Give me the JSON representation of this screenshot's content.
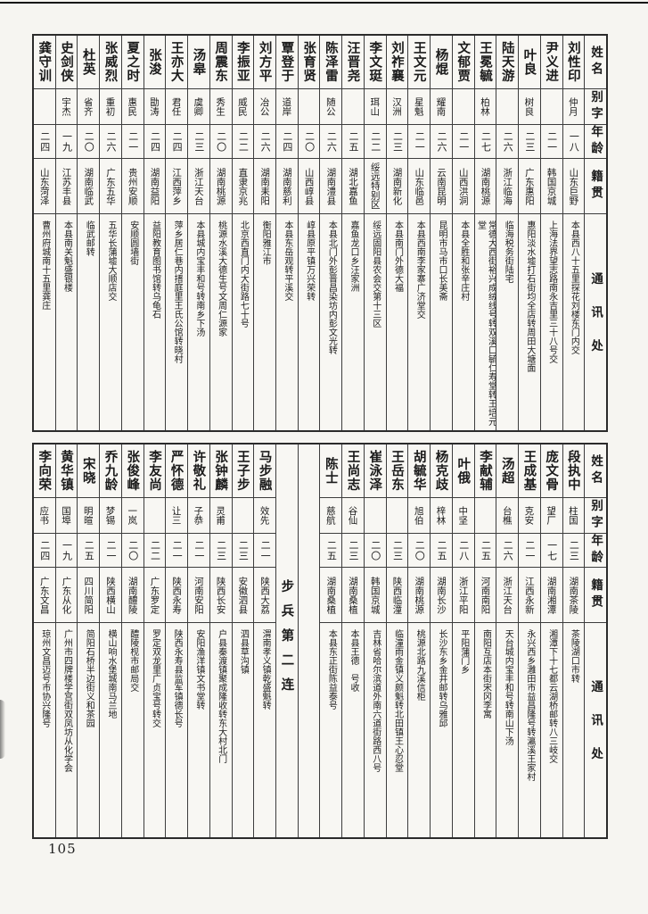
{
  "page": {
    "number": "105"
  },
  "colors": {
    "paper": "#f6f5f1",
    "ink": "#1b1b1b",
    "rule": "#3d3d3d"
  },
  "headers": {
    "name": "姓名",
    "zi": "别字",
    "age": "年龄",
    "origin": "籍贯",
    "address": "通讯处"
  },
  "top_table": {
    "persons": [
      {
        "name": "刘性印",
        "zi": "仲月",
        "age": "一八",
        "origin": "山东巨野",
        "address": "本县西八十五里探花刘楼东门内交"
      },
      {
        "name": "尹义进",
        "zi": "",
        "age": "二一",
        "origin": "韩国京城",
        "address": "上海法界望志路南永吉里三十八号交"
      },
      {
        "name": "叶良",
        "zi": "树良",
        "age": "二三",
        "origin": "广东惠阳",
        "address": "惠阳淡水墟打石街均全店转周田大塘面"
      },
      {
        "name": "陆天游",
        "zi": "",
        "age": "二六",
        "origin": "浙江临海",
        "address": "临海税务街陆宅"
      },
      {
        "name": "王冕毓",
        "zi": "柏林",
        "age": "二七",
        "origin": "湖南桃源",
        "address": "常德大西街裕兴成绒线号转双溪口毓仁寿堂转王培元堂"
      },
      {
        "name": "文郁贾",
        "zi": "",
        "age": "二一",
        "origin": "山西洪洞",
        "address": "本县全胜和张辛庄村"
      },
      {
        "name": "杨焜",
        "zi": "耀南",
        "age": "二六",
        "origin": "云南昆明",
        "address": "昆明市马市口长美斋"
      },
      {
        "name": "王文元",
        "zi": "星魁",
        "age": "二一",
        "origin": "山东临邑",
        "address": "本县西南李家寨广济堂交"
      },
      {
        "name": "刘祚襄",
        "zi": "汉洲",
        "age": "二三",
        "origin": "湖南新化",
        "address": "本县南门外德大福"
      },
      {
        "name": "李文珽",
        "zi": "珥山",
        "age": "二二",
        "origin": "绥远特别区",
        "address": "绥远固阳县农会交第十三区"
      },
      {
        "name": "汪晋尧",
        "zi": "",
        "age": "二五",
        "origin": "湖北嘉鱼",
        "address": "嘉鱼龙口乡汪家洲"
      },
      {
        "name": "陈泽雷",
        "zi": "随公",
        "age": "二六",
        "origin": "湖南澧县",
        "address": "本县北门外彭晋昌染坊内彭文光转"
      },
      {
        "name": "张育贤",
        "zi": "",
        "age": "二〇",
        "origin": "山西崞县",
        "address": "崞县原平镇万兴荣转"
      },
      {
        "name": "覃登于",
        "zi": "道岸",
        "age": "二四",
        "origin": "湖南慈利",
        "address": "本县东岳观转平溪交"
      },
      {
        "name": "刘方平",
        "zi": "冶公",
        "age": "二六",
        "origin": "湖南耒阳",
        "address": "衡阳雅江市"
      },
      {
        "name": "李振亚",
        "zi": "威民",
        "age": "二二",
        "origin": "直隶京兆",
        "address": "北京西直门内大街路七十号"
      },
      {
        "name": "周震东",
        "zi": "秀生",
        "age": "二〇",
        "origin": "湖南桃源",
        "address": "桃源水溪大德生号文周仁源家"
      },
      {
        "name": "汤皋",
        "zi": "虞卿",
        "age": "二三",
        "origin": "浙江天台",
        "address": "本县城内宝丰和号转南乡下汤"
      },
      {
        "name": "王亦大",
        "zi": "君任",
        "age": "二四",
        "origin": "江西萍乡",
        "address": "萍乡居仁巷内搢庭里王氏公馆转晓村"
      },
      {
        "name": "张浚",
        "zi": "勖涛",
        "age": "二四",
        "origin": "湖南益阳",
        "address": "益阳教育图书馆转乌龟石"
      },
      {
        "name": "夏之时",
        "zi": "惠民",
        "age": "二一",
        "origin": "贵州安顺",
        "address": "安顺圆墙街"
      },
      {
        "name": "张威烈",
        "zi": "重初",
        "age": "二六",
        "origin": "广东五华",
        "address": "五华长蒲墟大顺店交"
      },
      {
        "name": "杜英",
        "zi": "省齐",
        "age": "二〇",
        "origin": "湖南临武",
        "address": "临武邮转"
      },
      {
        "name": "史剑侠",
        "zi": "宇杰",
        "age": "一九",
        "origin": "江苏丰县",
        "address": "本县南关魁盛银楼"
      },
      {
        "name": "龚守训",
        "zi": "",
        "age": "二四",
        "origin": "山东菏泽",
        "address": "曹州府城南十五里龚庄"
      }
    ]
  },
  "bottom_table": {
    "section_label": "步兵第二连",
    "persons_right": [
      {
        "name": "段执中",
        "zi": "柱国",
        "age": "二三",
        "origin": "湖南茶陵",
        "address": "茶陵湖口市转"
      },
      {
        "name": "庞文骨",
        "zi": "望厂",
        "age": "一七",
        "origin": "湖南湘潭",
        "address": "湘潭下十七都云湖桥邮转八三岐交"
      },
      {
        "name": "王成基",
        "zi": "克安",
        "age": "二一",
        "origin": "江西永新",
        "address": "永兴西乡灉田市益昌隆号转瀛溪王家村"
      },
      {
        "name": "汤超",
        "zi": "台樵",
        "age": "二六",
        "origin": "浙江天台",
        "address": "天台城内宝丰和号转南山下汤"
      },
      {
        "name": "李献辅",
        "zi": "",
        "age": "二五",
        "origin": "河南南阳",
        "address": "南阳互店本街宋冈李寓"
      },
      {
        "name": "叶俄",
        "zi": "中坚",
        "age": "二八",
        "origin": "浙江平阳",
        "address": "平阳蒲门乡"
      },
      {
        "name": "杨克歧",
        "zi": "梓林",
        "age": "二五",
        "origin": "湖南长沙",
        "address": "长沙东乡金井邮转乌雅邱"
      },
      {
        "name": "胡毓华",
        "zi": "旭伯",
        "age": "二〇",
        "origin": "湖南桃源",
        "address": "桃源北路九溪信柜"
      },
      {
        "name": "王岳东",
        "zi": "",
        "age": "二三",
        "origin": "陕西临潼",
        "address": "临潼雨金镇义颇魁转北田镇王心忍堂"
      },
      {
        "name": "崔泳泽",
        "zi": "",
        "age": "二〇",
        "origin": "韩国京城",
        "address": "吉林省哈尔滨道外南六道街路西八号"
      },
      {
        "name": "王尚志",
        "zi": "谷仙",
        "age": "二三",
        "origin": "湖南桑植",
        "address": "本县王德　号收"
      },
      {
        "name": "陈士",
        "zi": "慈航",
        "age": "二五",
        "origin": "湖南桑植",
        "address": "本县东正街陈益泰号"
      }
    ],
    "persons_left": [
      {
        "name": "马步融",
        "zi": "效先",
        "age": "二一",
        "origin": "陕西大荔",
        "address": "渭南孝义镇乾盛魁转"
      },
      {
        "name": "王子步",
        "zi": "",
        "age": "二三",
        "origin": "安徽泗县",
        "address": "泗县草沟镇"
      },
      {
        "name": "张钟麟",
        "zi": "灵甫",
        "age": "二三",
        "origin": "陕西长安",
        "address": "户县秦渡镇聚成隆收转东大村北门"
      },
      {
        "name": "许敬礼",
        "zi": "子恭",
        "age": "二一",
        "origin": "河南安阳",
        "address": "安阳渔洋镇文书堂转"
      },
      {
        "name": "严怀德",
        "zi": "让三",
        "age": "二一",
        "origin": "陕西永寿",
        "address": "陕西永寿县监军镇德长号"
      },
      {
        "name": "李友尚",
        "zi": "",
        "age": "二二",
        "origin": "广东罗定",
        "address": "罗定双龙里广贞宝号转交"
      },
      {
        "name": "张俊峰",
        "zi": "一岚",
        "age": "二〇",
        "origin": "湖南醴陵",
        "address": "醴陵枧市邮局交"
      },
      {
        "name": "乔九龄",
        "zi": "梦锡",
        "age": "二一",
        "origin": "陕西横山",
        "address": "横山响水堡城南马兰地"
      },
      {
        "name": "宋晓",
        "zi": "明暄",
        "age": "二五",
        "origin": "四川简阳",
        "address": "简阳石桥半边街义和茶园"
      },
      {
        "name": "黄华镇",
        "zi": "国埠",
        "age": "一九",
        "origin": "广东从化",
        "address": "广州市四牌楼学宫街双凤坊从化学会"
      },
      {
        "name": "李向荣",
        "zi": "应书",
        "age": "二四",
        "origin": "广东文昌",
        "address": "琼州文昌迈号市协兴隆号"
      }
    ]
  }
}
